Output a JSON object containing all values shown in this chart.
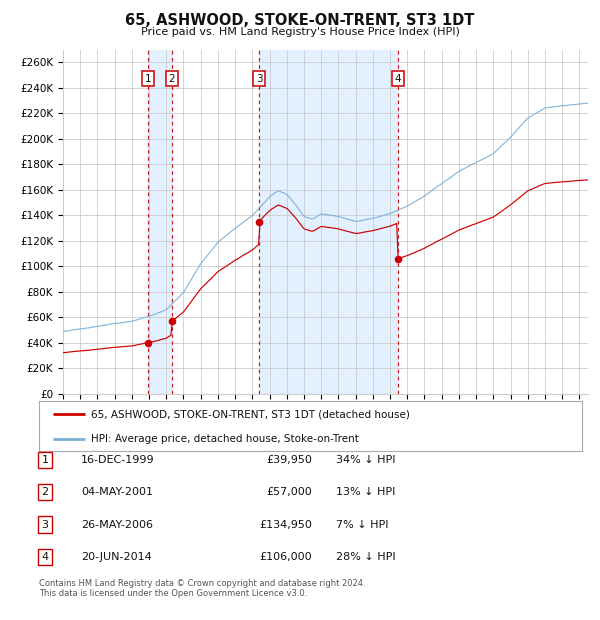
{
  "title": "65, ASHWOOD, STOKE-ON-TRENT, ST3 1DT",
  "subtitle": "Price paid vs. HM Land Registry's House Price Index (HPI)",
  "ylabel_values": [
    "£0",
    "£20K",
    "£40K",
    "£60K",
    "£80K",
    "£100K",
    "£120K",
    "£140K",
    "£160K",
    "£180K",
    "£200K",
    "£220K",
    "£240K",
    "£260K"
  ],
  "yticks": [
    0,
    20000,
    40000,
    60000,
    80000,
    100000,
    120000,
    140000,
    160000,
    180000,
    200000,
    220000,
    240000,
    260000
  ],
  "ylim": [
    0,
    270000
  ],
  "transactions": [
    {
      "num": 1,
      "date": "16-DEC-1999",
      "price": 39950,
      "hpi_pct": "34%",
      "x_year": 1999.958
    },
    {
      "num": 2,
      "date": "04-MAY-2001",
      "price": 57000,
      "hpi_pct": "13%",
      "x_year": 2001.336
    },
    {
      "num": 3,
      "date": "26-MAY-2006",
      "price": 134950,
      "hpi_pct": "7%",
      "x_year": 2006.399
    },
    {
      "num": 4,
      "date": "20-JUN-2014",
      "price": 106000,
      "hpi_pct": "28%",
      "x_year": 2014.466
    }
  ],
  "legend_property_label": "65, ASHWOOD, STOKE-ON-TRENT, ST3 1DT (detached house)",
  "legend_hpi_label": "HPI: Average price, detached house, Stoke-on-Trent",
  "property_color": "#cc0000",
  "hpi_color": "#7bafd4",
  "footnote1": "Contains HM Land Registry data © Crown copyright and database right 2024.",
  "footnote2": "This data is licensed under the Open Government Licence v3.0.",
  "xlim_start": 1995.0,
  "xlim_end": 2025.5,
  "plot_bg": "#ffffff",
  "grid_color": "#cccccc",
  "dashed_color": "#cc0000",
  "shade_color": "#ddeeff",
  "table_entries": [
    {
      "num": "1",
      "date": "16-DEC-1999",
      "price": "£39,950",
      "pct": "34% ↓ HPI"
    },
    {
      "num": "2",
      "date": "04-MAY-2001",
      "price": "£57,000",
      "pct": "13% ↓ HPI"
    },
    {
      "num": "3",
      "date": "26-MAY-2006",
      "price": "£134,950",
      "pct": "7% ↓ HPI"
    },
    {
      "num": "4",
      "date": "20-JUN-2014",
      "price": "£106,000",
      "pct": "28% ↓ HPI"
    }
  ]
}
